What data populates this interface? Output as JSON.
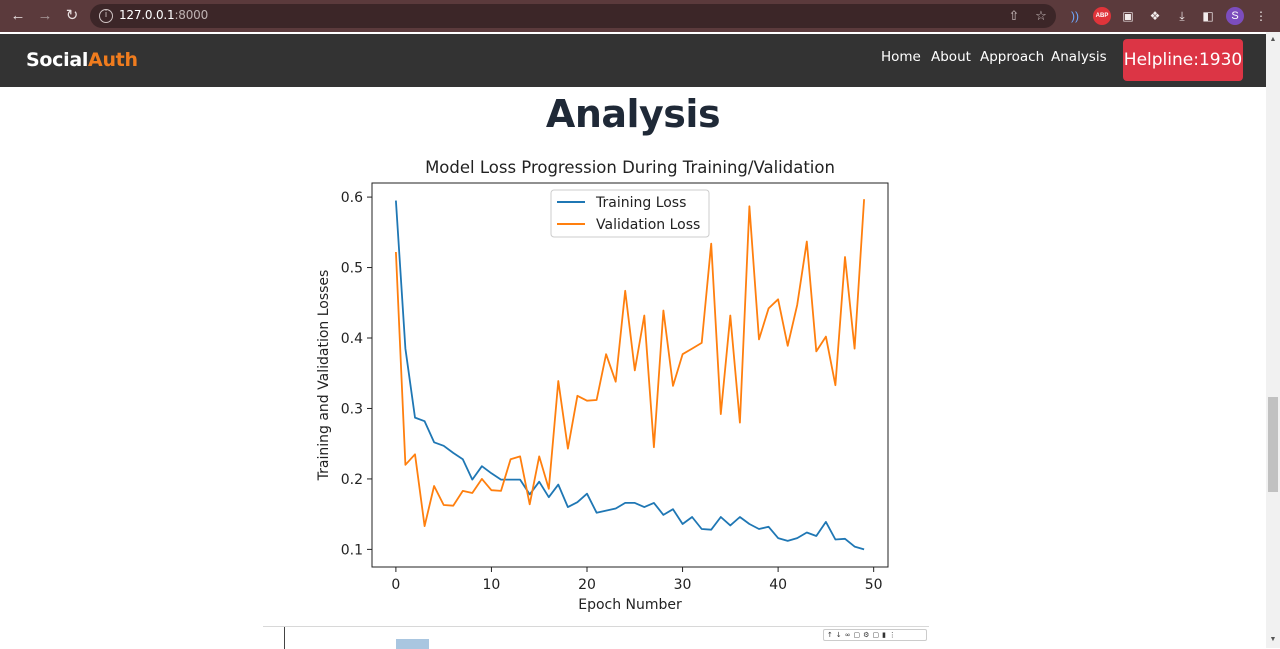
{
  "browser": {
    "url_host": "127.0.0.1",
    "url_port": ":8000",
    "back_icon": "back-arrow-icon",
    "forward_icon": "forward-arrow-icon",
    "reload_icon": "reload-icon",
    "profile_initial": "S",
    "abp_label": "ABP"
  },
  "navbar": {
    "brand_main": "Social",
    "brand_accent": "Auth",
    "links": [
      "Home",
      "About",
      "Approach",
      "Analysis"
    ],
    "helpline": "Helpline:1930",
    "accent_color": "#f07c1e",
    "helpline_color": "#dc3545"
  },
  "page": {
    "title": "Analysis"
  },
  "chart_data": {
    "type": "line",
    "title": "Model Loss Progression During Training/Validation",
    "xlabel": "Epoch Number",
    "ylabel": "Training and Validation Losses",
    "xlim": [
      -2.5,
      51.5
    ],
    "ylim": [
      0.075,
      0.62
    ],
    "xticks": [
      0,
      10,
      20,
      30,
      40,
      50
    ],
    "yticks": [
      0.1,
      0.2,
      0.3,
      0.4,
      0.5,
      0.6
    ],
    "legend_position": "top-center",
    "grid": false,
    "x": [
      0,
      1,
      2,
      3,
      4,
      5,
      6,
      7,
      8,
      9,
      10,
      11,
      12,
      13,
      14,
      15,
      16,
      17,
      18,
      19,
      20,
      21,
      22,
      23,
      24,
      25,
      26,
      27,
      28,
      29,
      30,
      31,
      32,
      33,
      34,
      35,
      36,
      37,
      38,
      39,
      40,
      41,
      42,
      43,
      44,
      45,
      46,
      47,
      48,
      49
    ],
    "series": [
      {
        "name": "Training Loss",
        "color": "#1f77b4",
        "values": [
          0.595,
          0.385,
          0.287,
          0.282,
          0.252,
          0.247,
          0.237,
          0.228,
          0.199,
          0.218,
          0.208,
          0.199,
          0.199,
          0.199,
          0.178,
          0.196,
          0.174,
          0.192,
          0.16,
          0.167,
          0.179,
          0.152,
          0.155,
          0.158,
          0.166,
          0.166,
          0.16,
          0.166,
          0.149,
          0.157,
          0.136,
          0.146,
          0.129,
          0.128,
          0.146,
          0.134,
          0.146,
          0.136,
          0.129,
          0.132,
          0.116,
          0.112,
          0.116,
          0.124,
          0.119,
          0.139,
          0.114,
          0.115,
          0.104,
          0.1
        ]
      },
      {
        "name": "Validation Loss",
        "color": "#ff7f0e",
        "values": [
          0.522,
          0.22,
          0.235,
          0.133,
          0.19,
          0.163,
          0.162,
          0.183,
          0.18,
          0.2,
          0.184,
          0.183,
          0.228,
          0.232,
          0.164,
          0.232,
          0.186,
          0.339,
          0.243,
          0.318,
          0.311,
          0.312,
          0.377,
          0.338,
          0.467,
          0.354,
          0.432,
          0.245,
          0.439,
          0.332,
          0.377,
          0.385,
          0.393,
          0.534,
          0.292,
          0.432,
          0.28,
          0.587,
          0.398,
          0.442,
          0.455,
          0.389,
          0.447,
          0.537,
          0.381,
          0.402,
          0.333,
          0.515,
          0.385,
          0.597
        ]
      }
    ]
  }
}
